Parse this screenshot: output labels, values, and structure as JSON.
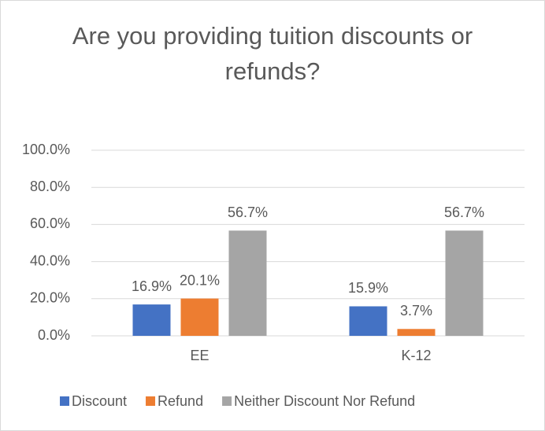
{
  "chart_data": {
    "type": "bar",
    "title": "Are you providing tuition discounts or refunds?",
    "categories": [
      "EE",
      "K-12"
    ],
    "series": [
      {
        "name": "Discount",
        "color": "#4472c4",
        "values": [
          16.9,
          15.9
        ],
        "value_labels": [
          "16.9%",
          "15.9%"
        ]
      },
      {
        "name": "Refund",
        "color": "#ed7d31",
        "values": [
          20.1,
          3.7
        ],
        "value_labels": [
          "20.1%",
          "3.7%"
        ]
      },
      {
        "name": "Neither Discount Nor Refund",
        "color": "#a5a5a5",
        "values": [
          56.7,
          56.7
        ],
        "value_labels": [
          "56.7%",
          "56.7%"
        ]
      }
    ],
    "ylim": [
      0,
      100
    ],
    "yticks": [
      {
        "value": 0,
        "label": "0.0%"
      },
      {
        "value": 20,
        "label": "20.0%"
      },
      {
        "value": 40,
        "label": "40.0%"
      },
      {
        "value": 60,
        "label": "60.0%"
      },
      {
        "value": 80,
        "label": "80.0%"
      },
      {
        "value": 100,
        "label": "100.0%"
      }
    ],
    "grid": true,
    "legend": "bottom"
  }
}
